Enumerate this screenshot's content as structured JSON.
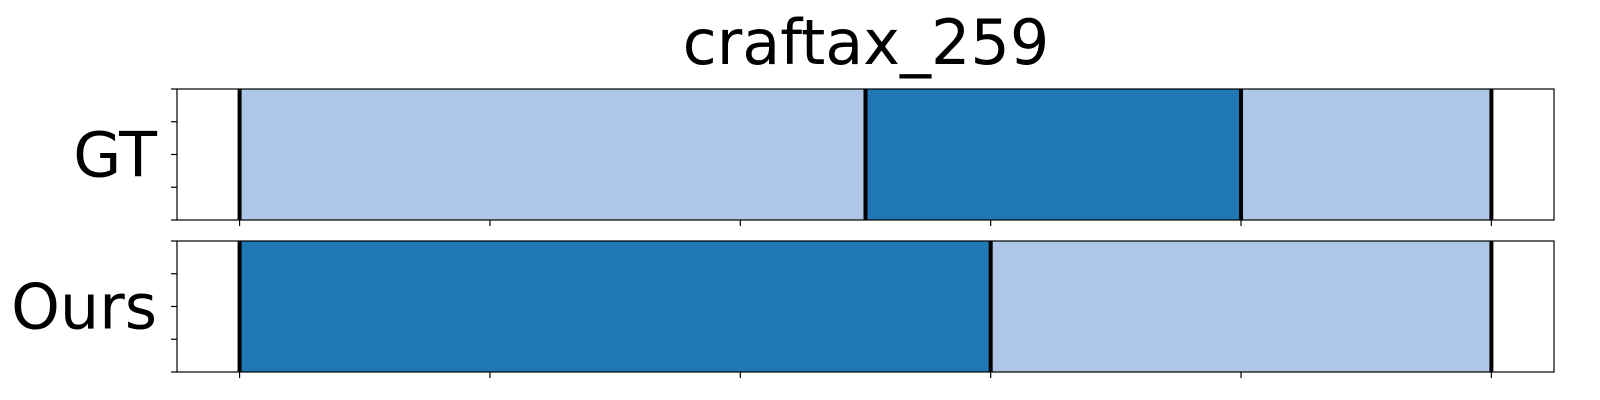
{
  "chart_data": {
    "type": "bar",
    "title": "craftax_259",
    "xlim": [
      -0.25,
      5.25
    ],
    "rows": [
      {
        "label": "GT",
        "segments": [
          {
            "start": 0,
            "end": 2.5,
            "color": "#aec7e8"
          },
          {
            "start": 2.5,
            "end": 4,
            "color": "#1f77b4"
          },
          {
            "start": 4,
            "end": 5,
            "color": "#aec7e8"
          }
        ],
        "boundaries": [
          0,
          2.5,
          4,
          5
        ]
      },
      {
        "label": "Ours",
        "segments": [
          {
            "start": 0,
            "end": 3,
            "color": "#1f77b4"
          },
          {
            "start": 3,
            "end": 5,
            "color": "#aec7e8"
          }
        ],
        "boundaries": [
          0,
          3,
          5
        ]
      }
    ],
    "xticks": [
      0,
      1,
      2,
      3,
      4,
      5
    ],
    "show_tick_labels": false,
    "grid": false
  }
}
